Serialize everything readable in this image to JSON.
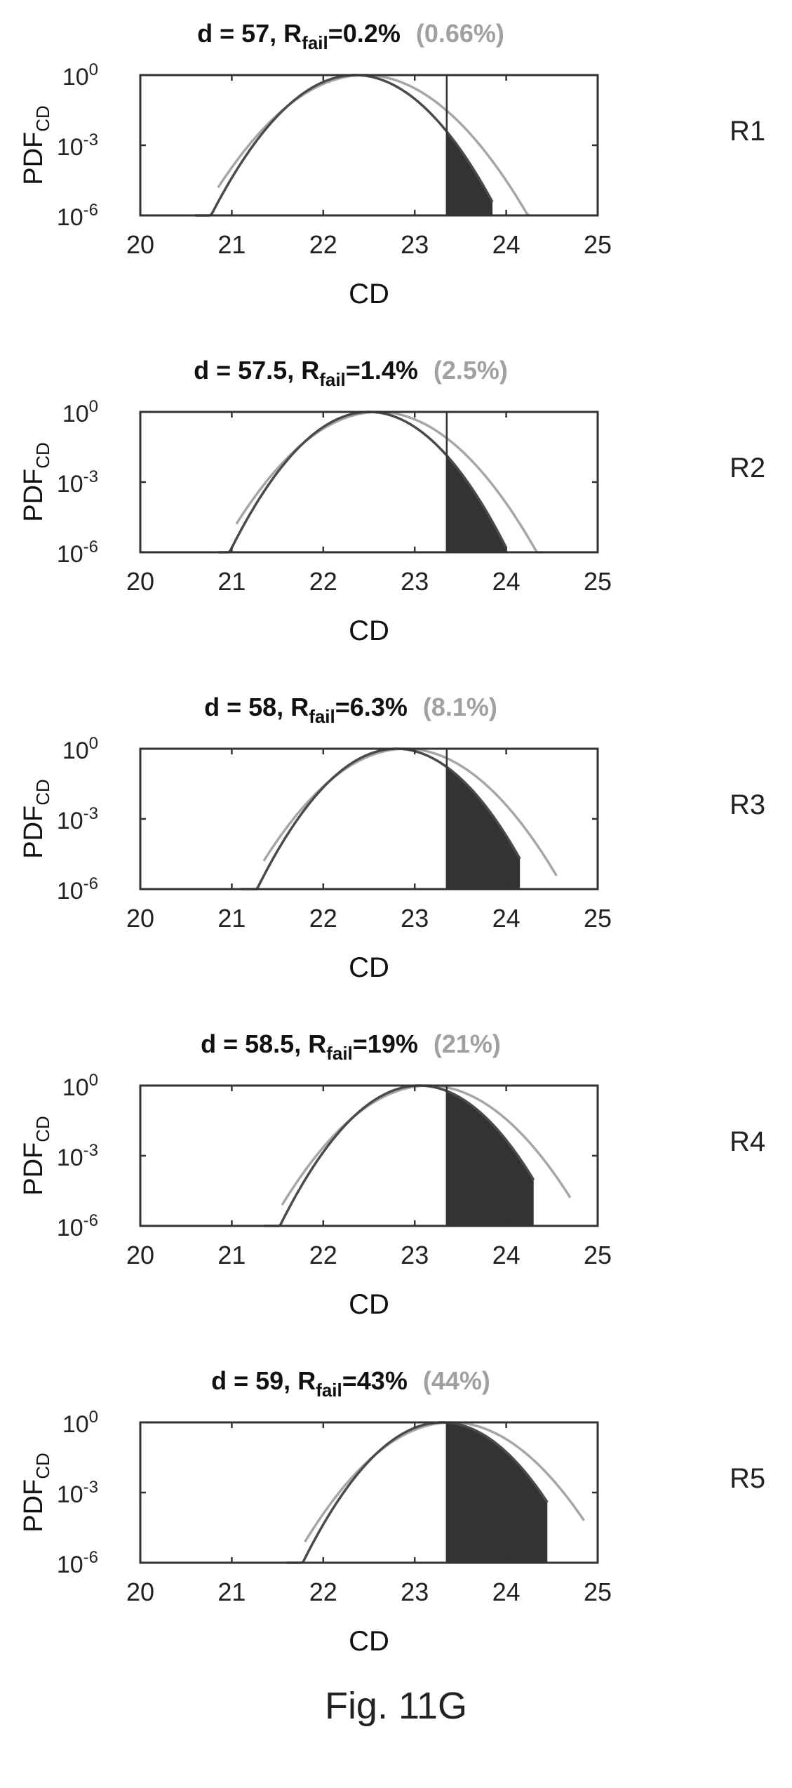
{
  "figure": {
    "caption": "Fig. 11G",
    "colors": {
      "dark_curve": "#4a4a4a",
      "light_curve": "#a6a6a6",
      "fill": "#333333",
      "axis": "#333333",
      "title_secondary": "#a0a0a0"
    }
  },
  "chart_data": [
    {
      "type": "line",
      "row_label": "R1",
      "title": {
        "d_text": "d = 57, R",
        "sub": "fail",
        "value": "=0.2%",
        "paren": "(0.66%)"
      },
      "xlabel": "CD",
      "ylabel": {
        "main": "PDF",
        "sub": "CD"
      },
      "x_ticks": [
        "20",
        "21",
        "22",
        "23",
        "24",
        "25"
      ],
      "y_ticks": [
        {
          "base": "10",
          "exp": "0"
        },
        {
          "base": "10",
          "exp": "-3"
        },
        {
          "base": "10",
          "exp": "-6"
        }
      ],
      "xlim": [
        20,
        25
      ],
      "ylim_log10": [
        -6,
        0
      ],
      "threshold": 23.35,
      "series": [
        {
          "style": "dark",
          "peak": 22.35,
          "sigma": 0.3,
          "x_min": 20.6,
          "x_max": 23.85
        },
        {
          "style": "light",
          "peak": 22.45,
          "sigma": 0.34,
          "x_min": 20.85,
          "x_max": 24.25
        }
      ],
      "shaded_tail": {
        "from": 23.35,
        "to": 23.85
      }
    },
    {
      "type": "line",
      "row_label": "R2",
      "title": {
        "d_text": "d = 57.5, R",
        "sub": "fail",
        "value": "=1.4%",
        "paren": "(2.5%)"
      },
      "xlabel": "CD",
      "ylabel": {
        "main": "PDF",
        "sub": "CD"
      },
      "x_ticks": [
        "20",
        "21",
        "22",
        "23",
        "24",
        "25"
      ],
      "y_ticks": [
        {
          "base": "10",
          "exp": "0"
        },
        {
          "base": "10",
          "exp": "-3"
        },
        {
          "base": "10",
          "exp": "-6"
        }
      ],
      "xlim": [
        20,
        25
      ],
      "ylim_log10": [
        -6,
        0
      ],
      "threshold": 23.35,
      "series": [
        {
          "style": "dark",
          "peak": 22.5,
          "sigma": 0.29,
          "x_min": 20.85,
          "x_max": 24.0
        },
        {
          "style": "light",
          "peak": 22.6,
          "sigma": 0.33,
          "x_min": 21.05,
          "x_max": 24.4
        }
      ],
      "shaded_tail": {
        "from": 23.35,
        "to": 24.0
      }
    },
    {
      "type": "line",
      "row_label": "R3",
      "title": {
        "d_text": "d = 58, R",
        "sub": "fail",
        "value": "=6.3%",
        "paren": "(8.1%)"
      },
      "xlabel": "CD",
      "ylabel": {
        "main": "PDF",
        "sub": "CD"
      },
      "x_ticks": [
        "20",
        "21",
        "22",
        "23",
        "24",
        "25"
      ],
      "y_ticks": [
        {
          "base": "10",
          "exp": "0"
        },
        {
          "base": "10",
          "exp": "-3"
        },
        {
          "base": "10",
          "exp": "-6"
        }
      ],
      "xlim": [
        20,
        25
      ],
      "ylim_log10": [
        -6,
        0
      ],
      "threshold": 23.35,
      "series": [
        {
          "style": "dark",
          "peak": 22.8,
          "sigma": 0.29,
          "x_min": 21.1,
          "x_max": 24.15
        },
        {
          "style": "light",
          "peak": 22.9,
          "sigma": 0.33,
          "x_min": 21.35,
          "x_max": 24.55
        }
      ],
      "shaded_tail": {
        "from": 23.35,
        "to": 24.15
      }
    },
    {
      "type": "line",
      "row_label": "R4",
      "title": {
        "d_text": "d = 58.5, R",
        "sub": "fail",
        "value": "=19%",
        "paren": "(21%)"
      },
      "xlabel": "CD",
      "ylabel": {
        "main": "PDF",
        "sub": "CD"
      },
      "x_ticks": [
        "20",
        "21",
        "22",
        "23",
        "24",
        "25"
      ],
      "y_ticks": [
        {
          "base": "10",
          "exp": "0"
        },
        {
          "base": "10",
          "exp": "-3"
        },
        {
          "base": "10",
          "exp": "-6"
        }
      ],
      "xlim": [
        20,
        25
      ],
      "ylim_log10": [
        -6,
        0
      ],
      "threshold": 23.35,
      "series": [
        {
          "style": "dark",
          "peak": 23.05,
          "sigma": 0.29,
          "x_min": 21.35,
          "x_max": 24.3
        },
        {
          "style": "light",
          "peak": 23.15,
          "sigma": 0.33,
          "x_min": 21.55,
          "x_max": 24.7
        }
      ],
      "shaded_tail": {
        "from": 23.35,
        "to": 24.3
      }
    },
    {
      "type": "line",
      "row_label": "R5",
      "title": {
        "d_text": "d = 59, R",
        "sub": "fail",
        "value": "=43%",
        "paren": "(44%)"
      },
      "xlabel": "CD",
      "ylabel": {
        "main": "PDF",
        "sub": "CD"
      },
      "x_ticks": [
        "20",
        "21",
        "22",
        "23",
        "24",
        "25"
      ],
      "y_ticks": [
        {
          "base": "10",
          "exp": "0"
        },
        {
          "base": "10",
          "exp": "-3"
        },
        {
          "base": "10",
          "exp": "-6"
        }
      ],
      "xlim": [
        20,
        25
      ],
      "ylim_log10": [
        -6,
        0
      ],
      "threshold": 23.35,
      "series": [
        {
          "style": "dark",
          "peak": 23.3,
          "sigma": 0.29,
          "x_min": 21.6,
          "x_max": 24.45
        },
        {
          "style": "light",
          "peak": 23.4,
          "sigma": 0.33,
          "x_min": 21.8,
          "x_max": 24.85
        }
      ],
      "shaded_tail": {
        "from": 23.35,
        "to": 24.45
      }
    }
  ]
}
